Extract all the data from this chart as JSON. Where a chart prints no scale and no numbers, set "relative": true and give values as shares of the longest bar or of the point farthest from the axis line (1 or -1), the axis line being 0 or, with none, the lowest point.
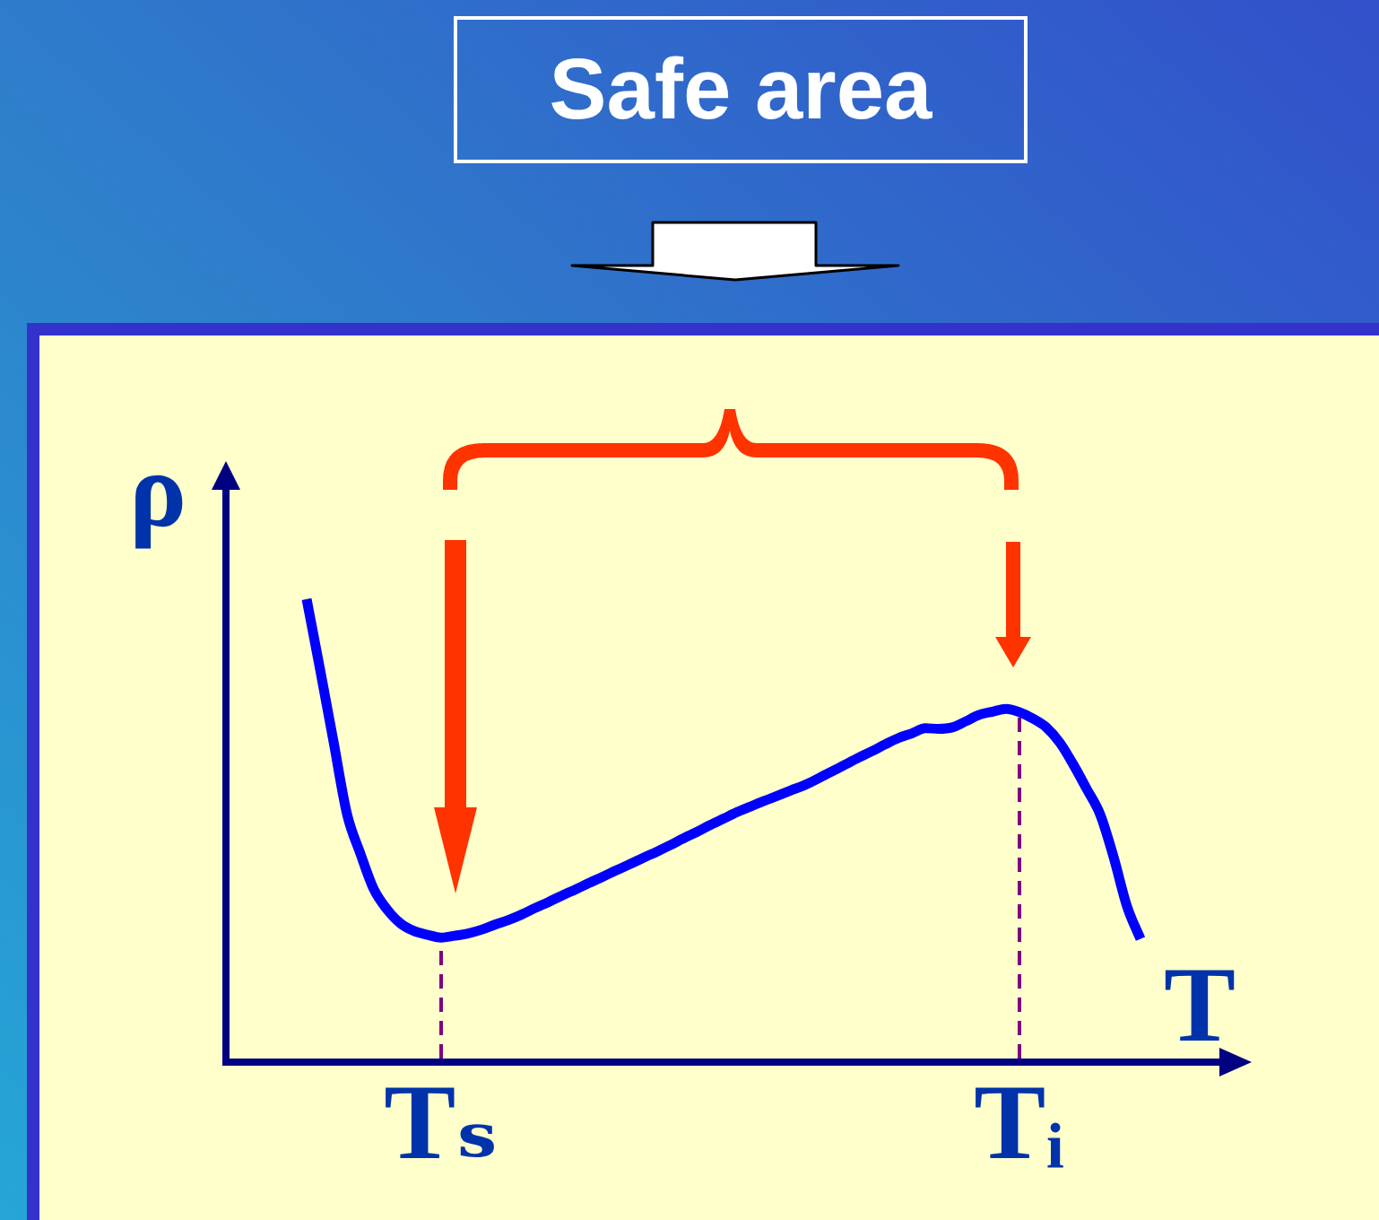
{
  "chart_data": {
    "type": "line",
    "title": "Safe area",
    "xlabel": "T",
    "ylabel": "ρ",
    "relative": true,
    "categories": [
      null,
      null,
      null,
      null,
      null,
      null,
      null,
      null,
      null,
      null,
      null,
      null,
      null,
      null,
      null,
      null,
      "Tₛ",
      null,
      null,
      null,
      null,
      null,
      null,
      null,
      null,
      null,
      null,
      null,
      null,
      null,
      null,
      null,
      null,
      null,
      null,
      null,
      null,
      null,
      null,
      null,
      null,
      null,
      null,
      null,
      null,
      null,
      null,
      null,
      null,
      null,
      null,
      null,
      null,
      null,
      null,
      null,
      null,
      null,
      null,
      "Tᵢ",
      null,
      null,
      null,
      null,
      null,
      null,
      null,
      null,
      null,
      null,
      null,
      null,
      null,
      null,
      null
    ],
    "series": [
      {
        "color": "#0000ff",
        "values": [
          null,
          null,
          null,
          null,
          null,
          null,
          1.0,
          0.848,
          0.692,
          0.536,
          0.45,
          0.373,
          0.329,
          0.299,
          0.283,
          0.275,
          0.269,
          0.273,
          0.278,
          0.286,
          0.297,
          0.307,
          0.319,
          0.333,
          0.346,
          0.36,
          0.373,
          0.387,
          0.4,
          0.414,
          0.427,
          0.441,
          0.454,
          0.468,
          0.483,
          0.497,
          0.512,
          0.526,
          0.54,
          0.552,
          0.564,
          0.575,
          0.587,
          0.598,
          0.612,
          0.627,
          0.642,
          0.657,
          0.671,
          0.686,
          0.7,
          0.71,
          0.721,
          0.72,
          0.723,
          0.736,
          0.75,
          0.757,
          0.763,
          0.756,
          0.742,
          0.723,
          0.69,
          0.643,
          0.59,
          0.535,
          0.443,
          0.336,
          0.266,
          null,
          null,
          null,
          null,
          null,
          null
        ]
      }
    ],
    "ref_lines": [
      {
        "axis": "x",
        "value": "Tₛ",
        "color": "#800080",
        "line_style": "dashed"
      },
      {
        "axis": "x",
        "value": "Tᵢ",
        "color": "#800080",
        "line_style": "dashed"
      }
    ],
    "grid": false,
    "legend": false,
    "marker": "none",
    "line_style": "solid"
  }
}
